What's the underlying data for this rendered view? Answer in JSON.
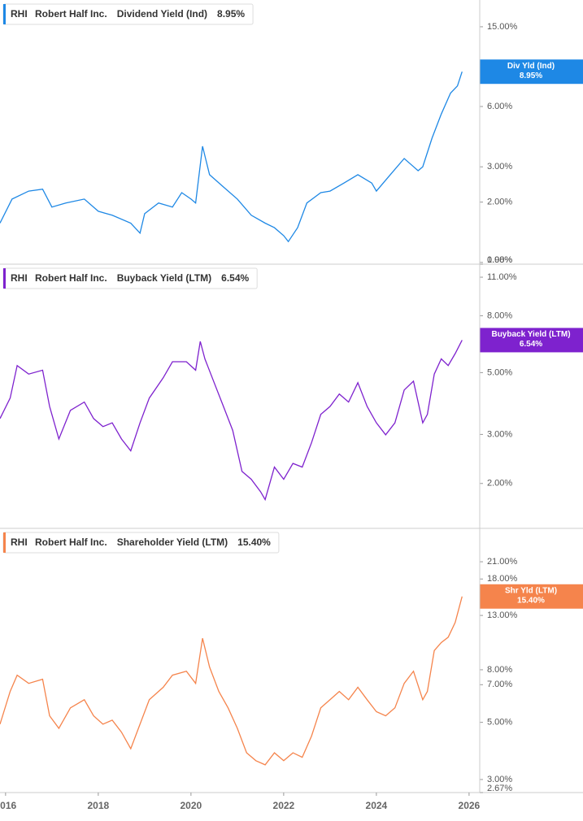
{
  "chart_data": [
    {
      "type": "line",
      "ticker": "RHI",
      "company": "Robert Half Inc.",
      "badge_label": "Div Yld (Ind)",
      "last_value": 8.95,
      "last_value_label": "8.95%",
      "log_scale": true,
      "xlim": [
        2015.88,
        2026.23
      ],
      "ylim": [
        0.98,
        20.4
      ],
      "yticks": [
        {
          "value": 15,
          "label": "15.00%"
        },
        {
          "value": 6,
          "label": "6.00%"
        },
        {
          "value": 3,
          "label": "3.00%"
        },
        {
          "value": 2,
          "label": "2.00%"
        },
        {
          "value": 1,
          "label": "1.00%"
        },
        {
          "value": 0.98,
          "label": "0.98%"
        }
      ],
      "x": [
        2015.88,
        2016.14,
        2016.5,
        2016.8,
        2017.0,
        2017.3,
        2017.7,
        2018.0,
        2018.3,
        2018.7,
        2018.9,
        2019.0,
        2019.3,
        2019.6,
        2019.8,
        2020.0,
        2020.1,
        2020.25,
        2020.4,
        2020.7,
        2021.0,
        2021.3,
        2021.6,
        2021.8,
        2022.0,
        2022.1,
        2022.3,
        2022.5,
        2022.8,
        2023.0,
        2023.3,
        2023.6,
        2023.9,
        2024.0,
        2024.3,
        2024.6,
        2024.9,
        2025.0,
        2025.2,
        2025.4,
        2025.6,
        2025.75,
        2025.85
      ],
      "series": [
        {
          "name": "Dividend Yield (Ind)",
          "color": "#1e88e5",
          "values": [
            1.57,
            2.07,
            2.27,
            2.32,
            1.89,
            1.98,
            2.07,
            1.8,
            1.72,
            1.57,
            1.4,
            1.75,
            1.98,
            1.89,
            2.23,
            2.07,
            1.98,
            3.8,
            2.74,
            2.38,
            2.07,
            1.72,
            1.57,
            1.49,
            1.36,
            1.27,
            1.49,
            1.98,
            2.23,
            2.27,
            2.49,
            2.74,
            2.49,
            2.27,
            2.74,
            3.3,
            2.87,
            3.0,
            4.17,
            5.5,
            7.0,
            7.6,
            8.95
          ]
        }
      ]
    },
    {
      "type": "line",
      "ticker": "RHI",
      "company": "Robert Half Inc.",
      "badge_label": "Buyback Yield (LTM)",
      "last_value": 6.54,
      "last_value_label": "6.54%",
      "log_scale": true,
      "xlim": [
        2015.88,
        2026.23
      ],
      "ylim": [
        1.38,
        12.25
      ],
      "yticks": [
        {
          "value": 11,
          "label": "11.00%"
        },
        {
          "value": 8,
          "label": "8.00%"
        },
        {
          "value": 5,
          "label": "5.00%"
        },
        {
          "value": 3,
          "label": "3.00%"
        },
        {
          "value": 2,
          "label": "2.00%"
        }
      ],
      "x": [
        2015.88,
        2016.1,
        2016.25,
        2016.5,
        2016.8,
        2016.95,
        2017.15,
        2017.4,
        2017.7,
        2017.9,
        2018.1,
        2018.3,
        2018.5,
        2018.7,
        2018.9,
        2019.1,
        2019.4,
        2019.6,
        2019.9,
        2020.1,
        2020.2,
        2020.3,
        2020.5,
        2020.7,
        2020.9,
        2021.1,
        2021.3,
        2021.5,
        2021.6,
        2021.8,
        2022.0,
        2022.2,
        2022.4,
        2022.6,
        2022.8,
        2023.0,
        2023.2,
        2023.4,
        2023.6,
        2023.8,
        2024.0,
        2024.2,
        2024.4,
        2024.6,
        2024.8,
        2025.0,
        2025.1,
        2025.25,
        2025.4,
        2025.55,
        2025.7,
        2025.85
      ],
      "series": [
        {
          "name": "Buyback Yield (LTM)",
          "color": "#7e22ce",
          "values": [
            3.42,
            4.05,
            5.3,
            4.94,
            5.1,
            3.78,
            2.89,
            3.66,
            3.92,
            3.42,
            3.2,
            3.3,
            2.89,
            2.62,
            3.3,
            4.05,
            4.79,
            5.47,
            5.47,
            5.1,
            6.47,
            5.6,
            4.6,
            3.78,
            3.1,
            2.21,
            2.07,
            1.87,
            1.75,
            2.29,
            2.07,
            2.36,
            2.29,
            2.8,
            3.54,
            3.78,
            4.19,
            3.92,
            4.6,
            3.78,
            3.3,
            2.99,
            3.3,
            4.33,
            4.66,
            3.3,
            3.54,
            4.94,
            5.6,
            5.3,
            5.85,
            6.54
          ]
        }
      ]
    },
    {
      "type": "line",
      "ticker": "RHI",
      "company": "Robert Half Inc.",
      "badge_label": "Shr Yld (LTM)",
      "last_value": 15.4,
      "last_value_label": "15.40%",
      "log_scale": true,
      "xlim": [
        2015.88,
        2026.23
      ],
      "ylim": [
        2.67,
        28.3
      ],
      "yticks": [
        {
          "value": 21,
          "label": "21.00%"
        },
        {
          "value": 18,
          "label": "18.00%"
        },
        {
          "value": 13,
          "label": "13.00%"
        },
        {
          "value": 8,
          "label": "8.00%"
        },
        {
          "value": 7,
          "label": "7.00%"
        },
        {
          "value": 5,
          "label": "5.00%"
        },
        {
          "value": 3,
          "label": "3.00%"
        },
        {
          "value": 2.67,
          "label": "2.67%"
        }
      ],
      "xticks": [
        2016,
        2018,
        2020,
        2022,
        2024,
        2026
      ],
      "x": [
        2015.88,
        2016.1,
        2016.25,
        2016.5,
        2016.8,
        2016.95,
        2017.15,
        2017.4,
        2017.7,
        2017.9,
        2018.1,
        2018.3,
        2018.5,
        2018.7,
        2018.9,
        2019.1,
        2019.4,
        2019.6,
        2019.9,
        2020.1,
        2020.25,
        2020.4,
        2020.6,
        2020.8,
        2021.0,
        2021.2,
        2021.4,
        2021.6,
        2021.8,
        2022.0,
        2022.2,
        2022.4,
        2022.6,
        2022.8,
        2023.0,
        2023.2,
        2023.4,
        2023.6,
        2023.8,
        2024.0,
        2024.2,
        2024.4,
        2024.6,
        2024.8,
        2025.0,
        2025.1,
        2025.25,
        2025.4,
        2025.55,
        2025.7,
        2025.85
      ],
      "series": [
        {
          "name": "Shareholder Yield (LTM)",
          "color": "#f5844c",
          "values": [
            4.92,
            6.59,
            7.62,
            7.08,
            7.35,
            5.3,
            4.74,
            5.69,
            6.12,
            5.3,
            4.92,
            5.1,
            4.58,
            3.95,
            4.92,
            6.12,
            6.84,
            7.62,
            7.9,
            7.08,
            10.6,
            8.2,
            6.59,
            5.69,
            4.74,
            3.81,
            3.55,
            3.42,
            3.81,
            3.55,
            3.81,
            3.66,
            4.42,
            5.69,
            6.12,
            6.59,
            6.12,
            6.84,
            6.12,
            5.5,
            5.3,
            5.69,
            7.08,
            7.9,
            6.12,
            6.59,
            9.5,
            10.2,
            10.7,
            12.2,
            15.4
          ]
        }
      ]
    }
  ]
}
